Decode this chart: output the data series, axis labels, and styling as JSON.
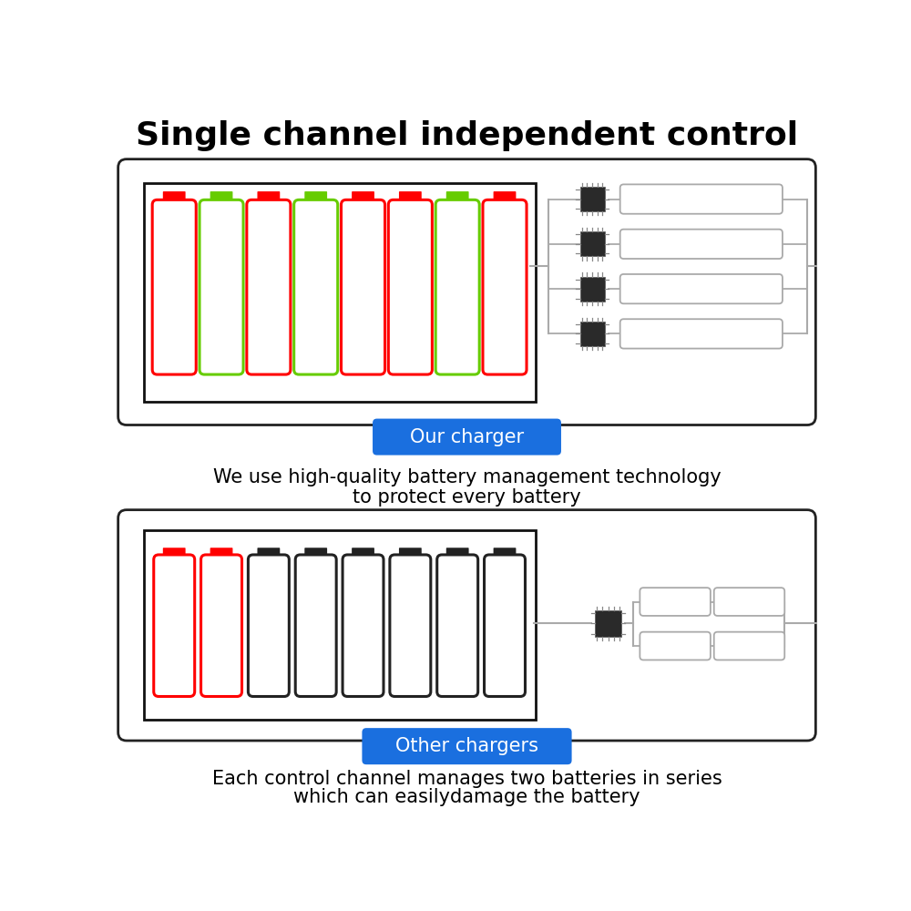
{
  "title": "Single channel independent control",
  "title_fontsize": 26,
  "title_fontweight": "bold",
  "bg_color": "#ffffff",
  "panel_border_color": "#222222",
  "panel_border_lw": 2.0,
  "inner_border_color": "#111111",
  "inner_border_lw": 2.0,
  "battery_colors_top": [
    "red",
    "#66cc00",
    "red",
    "#66cc00",
    "red",
    "red",
    "#66cc00",
    "red"
  ],
  "battery_colors_bottom": [
    "red",
    "red",
    "#222222",
    "#222222",
    "#222222",
    "#222222",
    "#222222",
    "#222222"
  ],
  "blue_btn_color": "#1a6fdf",
  "blue_btn_text_color": "#ffffff",
  "our_charger_label": "Our charger",
  "other_charger_label": "Other chargers",
  "desc1_line1": "We use high-quality battery management technology",
  "desc1_line2": "to protect every battery",
  "desc2_line1": "Each control channel manages two batteries in series",
  "desc2_line2": "which can easilydamage the battery",
  "desc_fontsize": 15,
  "chip_color": "#2a2a2a",
  "wire_color": "#aaaaaa",
  "resistor_color": "#ffffff",
  "resistor_border": "#aaaaaa",
  "pin_color": "#888888"
}
